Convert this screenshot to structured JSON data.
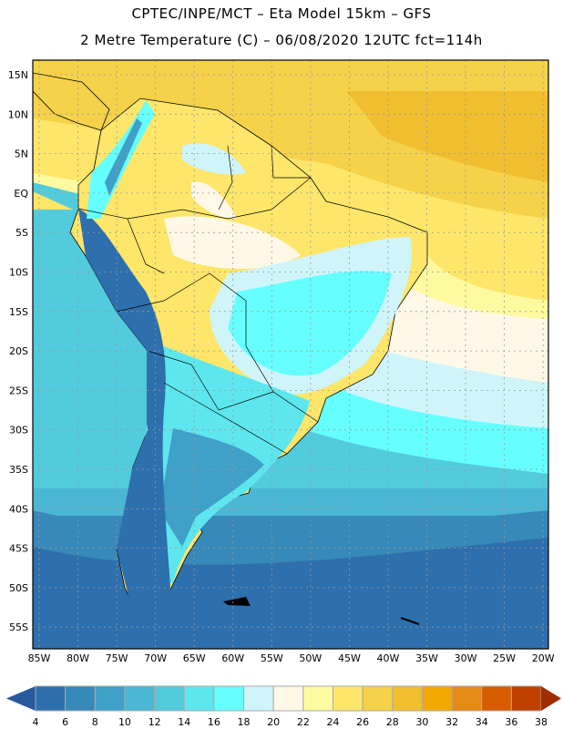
{
  "header": {
    "line1": "CPTEC/INPE/MCT –  Eta Model 15km – GFS",
    "line2": "2 Metre Temperature (C) – 06/08/2020 12UTC fct=114h"
  },
  "map": {
    "lat_labels": [
      "15N",
      "10N",
      "5N",
      "EQ",
      "5S",
      "10S",
      "15S",
      "20S",
      "25S",
      "30S",
      "35S",
      "40S",
      "45S",
      "50S",
      "55S"
    ],
    "lon_labels": [
      "85W",
      "80W",
      "75W",
      "70W",
      "65W",
      "60W",
      "55W",
      "50W",
      "45W",
      "40W",
      "35W",
      "30W",
      "25W",
      "20W"
    ]
  },
  "colorbar": {
    "levels": [
      "4",
      "6",
      "8",
      "10",
      "12",
      "14",
      "16",
      "18",
      "20",
      "22",
      "24",
      "26",
      "28",
      "30",
      "32",
      "34",
      "36",
      "38"
    ],
    "colors": [
      "#2e6fad",
      "#3689b8",
      "#3fa0c8",
      "#4ab8d4",
      "#52cbdc",
      "#5ee6ee",
      "#66ffff",
      "#cff5fb",
      "#fff8e6",
      "#fffaa0",
      "#fde66a",
      "#f5d24a",
      "#f0be2e",
      "#f2a800",
      "#e68a16",
      "#d85c00",
      "#c04000"
    ],
    "under_color": "#285aa0",
    "over_color": "#a02c00"
  }
}
